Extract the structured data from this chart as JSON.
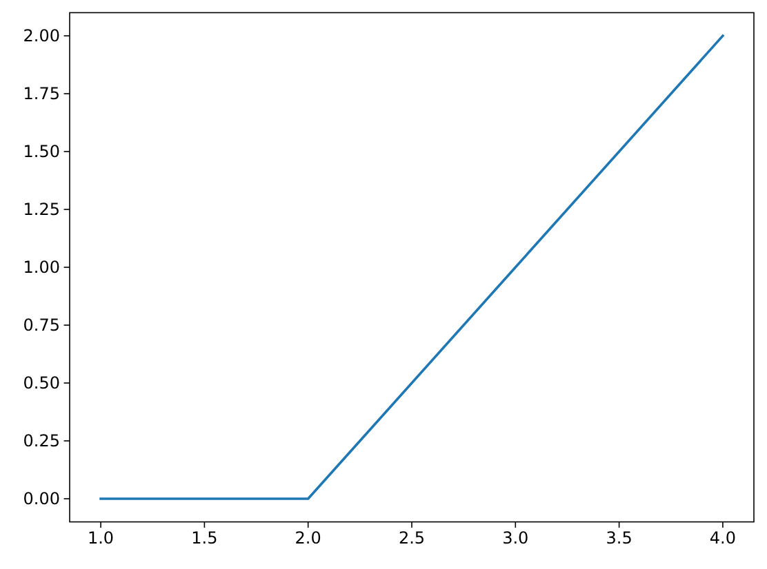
{
  "chart_data": {
    "type": "line",
    "x": [
      1,
      2,
      3,
      4
    ],
    "series": [
      {
        "color": "#1f77b4",
        "values": [
          0,
          0,
          1,
          2
        ]
      }
    ],
    "xlim": [
      0.85,
      4.15
    ],
    "xticks": [
      {
        "value": 1,
        "label": "1.0"
      },
      {
        "value": 1.5,
        "label": "1.5"
      },
      {
        "value": 2,
        "label": "2.0"
      },
      {
        "value": 2.5,
        "label": "2.5"
      },
      {
        "value": 3,
        "label": "3.0"
      },
      {
        "value": 3.5,
        "label": "3.5"
      },
      {
        "value": 4,
        "label": "4.0"
      }
    ],
    "ylim": [
      -0.1,
      2.1
    ],
    "yticks": [
      {
        "value": 0,
        "label": "0.00"
      },
      {
        "value": 0.25,
        "label": "0.25"
      },
      {
        "value": 0.5,
        "label": "0.50"
      },
      {
        "value": 0.75,
        "label": "0.75"
      },
      {
        "value": 1,
        "label": "1.00"
      },
      {
        "value": 1.25,
        "label": "1.25"
      },
      {
        "value": 1.5,
        "label": "1.50"
      },
      {
        "value": 1.75,
        "label": "1.75"
      },
      {
        "value": 2,
        "label": "2.00"
      }
    ],
    "grid": false,
    "marker": "none",
    "line_style": "solid"
  }
}
